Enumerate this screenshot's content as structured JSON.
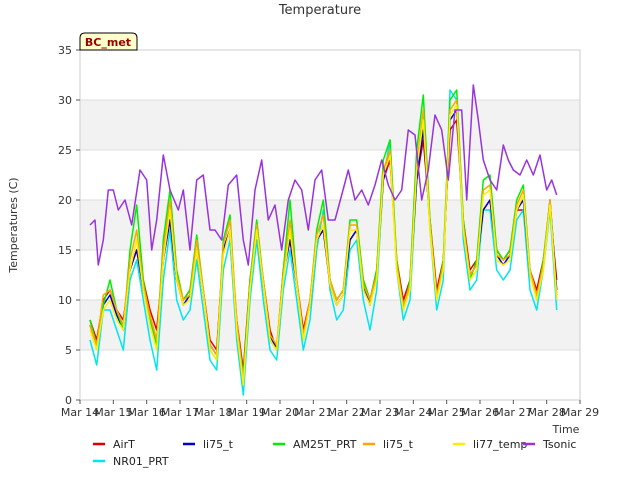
{
  "chart_data": {
    "type": "line",
    "title": "Temperature",
    "badge": "BC_met",
    "xlabel": "Time",
    "ylabel": "Temperatures (C)",
    "ylim": [
      0,
      35
    ],
    "xlim": [
      14,
      29
    ],
    "yticks": [
      0,
      5,
      10,
      15,
      20,
      25,
      30,
      35
    ],
    "xticks": [
      {
        "v": 14,
        "label": "Mar 14"
      },
      {
        "v": 15,
        "label": "Mar 15"
      },
      {
        "v": 16,
        "label": "Mar 16"
      },
      {
        "v": 17,
        "label": "Mar 17"
      },
      {
        "v": 18,
        "label": "Mar 18"
      },
      {
        "v": 19,
        "label": "Mar 19"
      },
      {
        "v": 20,
        "label": "Mar 20"
      },
      {
        "v": 21,
        "label": "Mar 21"
      },
      {
        "v": 22,
        "label": "Mar 22"
      },
      {
        "v": 23,
        "label": "Mar 23"
      },
      {
        "v": 24,
        "label": "Mar 24"
      },
      {
        "v": 25,
        "label": "Mar 25"
      },
      {
        "v": 26,
        "label": "Mar 26"
      },
      {
        "v": 27,
        "label": "Mar 27"
      },
      {
        "v": 28,
        "label": "Mar 28"
      },
      {
        "v": 29,
        "label": "Mar 29"
      }
    ],
    "grid": "horizontal bands",
    "legend_position": "bottom",
    "series": [
      {
        "name": "AirT",
        "color": "#dd0000",
        "x": [
          14.3,
          14.5,
          14.7,
          14.9,
          15.1,
          15.3,
          15.5,
          15.7,
          15.9,
          16.1,
          16.3,
          16.5,
          16.7,
          16.9,
          17.1,
          17.3,
          17.5,
          17.7,
          17.9,
          18.1,
          18.3,
          18.5,
          18.7,
          18.9,
          19.1,
          19.3,
          19.5,
          19.7,
          19.9,
          20.1,
          20.3,
          20.5,
          20.7,
          20.9,
          21.1,
          21.3,
          21.5,
          21.7,
          21.9,
          22.1,
          22.3,
          22.5,
          22.7,
          22.9,
          23.1,
          23.3,
          23.5,
          23.7,
          23.9,
          24.1,
          24.3,
          24.5,
          24.7,
          24.9,
          25.1,
          25.3,
          25.5,
          25.7,
          25.9,
          26.1,
          26.3,
          26.5,
          26.7,
          26.9,
          27.1,
          27.3,
          27.5,
          27.7,
          27.9,
          28.1,
          28.3
        ],
        "y": [
          8,
          6,
          10,
          11,
          9,
          8,
          13,
          15,
          12,
          9,
          7,
          14,
          18,
          12,
          10,
          11,
          15,
          11,
          6,
          5,
          15,
          17,
          8,
          3,
          12,
          17,
          12,
          7,
          5,
          13,
          16,
          12,
          7,
          10,
          16,
          17,
          12,
          10,
          11,
          16,
          17,
          12,
          10,
          13,
          22,
          24,
          14,
          10,
          12,
          22,
          26,
          18,
          11,
          14,
          27,
          28,
          18,
          13,
          14,
          19,
          20,
          15,
          14,
          15,
          19,
          19,
          13,
          11,
          14,
          19,
          12
        ]
      },
      {
        "name": "NR01_PRT",
        "color": "#00e5ee",
        "x": [
          14.3,
          14.5,
          14.7,
          14.9,
          15.1,
          15.3,
          15.5,
          15.7,
          15.9,
          16.1,
          16.3,
          16.5,
          16.7,
          16.9,
          17.1,
          17.3,
          17.5,
          17.7,
          17.9,
          18.1,
          18.3,
          18.5,
          18.7,
          18.9,
          19.1,
          19.3,
          19.5,
          19.7,
          19.9,
          20.1,
          20.3,
          20.5,
          20.7,
          20.9,
          21.1,
          21.3,
          21.5,
          21.7,
          21.9,
          22.1,
          22.3,
          22.5,
          22.7,
          22.9,
          23.1,
          23.3,
          23.5,
          23.7,
          23.9,
          24.1,
          24.3,
          24.5,
          24.7,
          24.9,
          25.1,
          25.3,
          25.5,
          25.7,
          25.9,
          26.1,
          26.3,
          26.5,
          26.7,
          26.9,
          27.1,
          27.3,
          27.5,
          27.7,
          27.9,
          28.1,
          28.3
        ],
        "y": [
          6,
          3.5,
          9,
          9,
          7,
          5,
          12,
          14,
          10,
          6,
          3,
          12,
          17,
          10,
          8,
          9,
          14,
          9,
          4,
          3,
          13,
          16,
          6,
          0.5,
          10,
          16,
          10,
          5,
          4,
          11,
          15,
          10,
          5,
          8,
          15,
          19,
          11,
          8,
          9,
          15,
          16,
          10,
          7,
          11,
          22,
          26,
          13,
          8,
          10,
          22,
          28,
          17,
          9,
          12,
          31,
          30,
          16,
          11,
          12,
          19,
          19,
          13,
          12,
          13,
          18,
          19,
          11,
          9,
          13,
          19,
          9
        ]
      },
      {
        "name": "li75_t",
        "color": "#0000cc",
        "x": [
          14.3,
          14.5,
          14.7,
          14.9,
          15.1,
          15.3,
          15.5,
          15.7,
          15.9,
          16.1,
          16.3,
          16.5,
          16.7,
          16.9,
          17.1,
          17.3,
          17.5,
          17.7,
          17.9,
          18.1,
          18.3,
          18.5,
          18.7,
          18.9,
          19.1,
          19.3,
          19.5,
          19.7,
          19.9,
          20.1,
          20.3,
          20.5,
          20.7,
          20.9,
          21.1,
          21.3,
          21.5,
          21.7,
          21.9,
          22.1,
          22.3,
          22.5,
          22.7,
          22.9,
          23.1,
          23.3,
          23.5,
          23.7,
          23.9,
          24.1,
          24.3,
          24.5,
          24.7,
          24.9,
          25.1,
          25.3,
          25.5,
          25.7,
          25.9,
          26.1,
          26.3,
          26.5,
          26.7,
          26.9,
          27.1,
          27.3,
          27.5,
          27.7,
          27.9,
          28.1,
          28.3
        ],
        "y": [
          7.5,
          5.5,
          9.5,
          10.5,
          8.5,
          7,
          13,
          15,
          11,
          8,
          6,
          14,
          18,
          12,
          9.5,
          10.5,
          15,
          10.5,
          5.5,
          4.5,
          15,
          17,
          7.5,
          2.5,
          11.5,
          17,
          11.5,
          6.5,
          5,
          12.5,
          16,
          11.5,
          6.5,
          9.5,
          16,
          17,
          11.5,
          9.5,
          10.5,
          16,
          17,
          11.5,
          9.5,
          12.5,
          22,
          25,
          13.5,
          9.5,
          11.5,
          22,
          27,
          17.5,
          10.5,
          13.5,
          28,
          29,
          17.5,
          12.5,
          13.5,
          19,
          20,
          14.5,
          13.5,
          14.5,
          19,
          20,
          12.5,
          10.5,
          13.5,
          20,
          11
        ]
      },
      {
        "name": "AM25T_PRT",
        "color": "#00ee00",
        "x": [
          14.3,
          14.5,
          14.7,
          14.9,
          15.1,
          15.3,
          15.5,
          15.7,
          15.9,
          16.1,
          16.3,
          16.5,
          16.7,
          16.9,
          17.1,
          17.3,
          17.5,
          17.7,
          17.9,
          18.1,
          18.3,
          18.5,
          18.7,
          18.9,
          19.1,
          19.3,
          19.5,
          19.7,
          19.9,
          20.1,
          20.3,
          20.5,
          20.7,
          20.9,
          21.1,
          21.3,
          21.5,
          21.7,
          21.9,
          22.1,
          22.3,
          22.5,
          22.7,
          22.9,
          23.1,
          23.3,
          23.5,
          23.7,
          23.9,
          24.1,
          24.3,
          24.5,
          24.7,
          24.9,
          25.1,
          25.3,
          25.5,
          25.7,
          25.9,
          26.1,
          26.3,
          26.5,
          26.7,
          26.9,
          27.1,
          27.3,
          27.5,
          27.7,
          27.9,
          28.1,
          28.3
        ],
        "y": [
          8,
          5.5,
          9.5,
          12,
          9,
          7,
          15,
          19.5,
          12,
          8,
          5.5,
          16,
          21,
          13,
          10,
          11,
          16.5,
          11,
          5,
          4,
          16,
          18.5,
          7.5,
          2.5,
          12,
          18,
          12,
          6,
          5,
          13,
          20,
          12,
          6,
          10,
          17,
          20,
          12,
          10,
          11,
          18,
          18,
          12,
          10,
          13,
          24,
          26,
          14,
          9,
          12,
          25,
          30.5,
          18,
          10,
          14,
          30,
          31,
          18,
          12,
          14,
          22,
          22.5,
          15,
          14,
          15,
          20,
          21.5,
          13,
          10,
          14,
          20,
          10
        ]
      },
      {
        "name": "li75_t",
        "color": "#ffa500",
        "x": [
          14.3,
          14.5,
          14.7,
          14.9,
          15.1,
          15.3,
          15.5,
          15.7,
          15.9,
          16.1,
          16.3,
          16.5,
          16.7,
          16.9,
          17.1,
          17.3,
          17.5,
          17.7,
          17.9,
          18.1,
          18.3,
          18.5,
          18.7,
          18.9,
          19.1,
          19.3,
          19.5,
          19.7,
          19.9,
          20.1,
          20.3,
          20.5,
          20.7,
          20.9,
          21.1,
          21.3,
          21.5,
          21.7,
          21.9,
          22.1,
          22.3,
          22.5,
          22.7,
          22.9,
          23.1,
          23.3,
          23.5,
          23.7,
          23.9,
          24.1,
          24.3,
          24.5,
          24.7,
          24.9,
          25.1,
          25.3,
          25.5,
          25.7,
          25.9,
          26.1,
          26.3,
          26.5,
          26.7,
          26.9,
          27.1,
          27.3,
          27.5,
          27.7,
          27.9,
          28.1,
          28.3
        ],
        "y": [
          7.5,
          5.5,
          10.5,
          11,
          9,
          7.5,
          14,
          17,
          11.5,
          8.5,
          6,
          15,
          20,
          12.5,
          10,
          10.5,
          16,
          11,
          5.5,
          4.5,
          15.5,
          18,
          8,
          2,
          11.5,
          17.5,
          12,
          6.5,
          5.5,
          12.5,
          18,
          12,
          6.5,
          10,
          16.5,
          18.5,
          12,
          10,
          11,
          17.5,
          17.5,
          11.5,
          10,
          12.5,
          23,
          25,
          13.5,
          9.5,
          11.5,
          23.5,
          29,
          17.5,
          10.5,
          13.5,
          29,
          30,
          17.5,
          12.5,
          13.5,
          21,
          21.5,
          14.5,
          14,
          14.5,
          19.5,
          21,
          13,
          10.5,
          13.5,
          20,
          10.5
        ]
      },
      {
        "name": "li77_temp",
        "color": "#ffee00",
        "x": [
          14.3,
          14.5,
          14.7,
          14.9,
          15.1,
          15.3,
          15.5,
          15.7,
          15.9,
          16.1,
          16.3,
          16.5,
          16.7,
          16.9,
          17.1,
          17.3,
          17.5,
          17.7,
          17.9,
          18.1,
          18.3,
          18.5,
          18.7,
          18.9,
          19.1,
          19.3,
          19.5,
          19.7,
          19.9,
          20.1,
          20.3,
          20.5,
          20.7,
          20.9,
          21.1,
          21.3,
          21.5,
          21.7,
          21.9,
          22.1,
          22.3,
          22.5,
          22.7,
          22.9,
          23.1,
          23.3,
          23.5,
          23.7,
          23.9,
          24.1,
          24.3,
          24.5,
          24.7,
          24.9,
          25.1,
          25.3,
          25.5,
          25.7,
          25.9,
          26.1,
          26.3,
          26.5,
          26.7,
          26.9,
          27.1,
          27.3,
          27.5,
          27.7,
          27.9,
          28.1,
          28.3
        ],
        "y": [
          7,
          5,
          9,
          10,
          8,
          7,
          13,
          16,
          11,
          7.5,
          5,
          14,
          19,
          12,
          9.5,
          10,
          15,
          10.5,
          5,
          4,
          14.5,
          17,
          7,
          1.5,
          11,
          17,
          11.5,
          6,
          5,
          12,
          17,
          11.5,
          6,
          9.5,
          16,
          17.5,
          11.5,
          9.5,
          10.5,
          17,
          17,
          11,
          9.5,
          12,
          22.5,
          24.5,
          13,
          9,
          11,
          23,
          28,
          17,
          10,
          13,
          28.5,
          29.5,
          17,
          12,
          13,
          20.5,
          21,
          14,
          13.5,
          14,
          19,
          20.5,
          12.5,
          10,
          13,
          19.5,
          10
        ]
      },
      {
        "name": "Tsonic",
        "color": "#9933dd",
        "x": [
          14.3,
          14.45,
          14.55,
          14.7,
          14.85,
          15.0,
          15.15,
          15.35,
          15.55,
          15.8,
          16.0,
          16.15,
          16.3,
          16.5,
          16.7,
          16.95,
          17.1,
          17.3,
          17.5,
          17.7,
          17.9,
          18.05,
          18.25,
          18.45,
          18.7,
          18.9,
          19.05,
          19.25,
          19.45,
          19.65,
          19.85,
          20.05,
          20.25,
          20.45,
          20.65,
          20.85,
          21.05,
          21.25,
          21.45,
          21.65,
          21.85,
          22.05,
          22.25,
          22.45,
          22.65,
          22.85,
          23.05,
          23.25,
          23.45,
          23.65,
          23.85,
          24.05,
          24.25,
          24.45,
          24.65,
          24.85,
          25.05,
          25.25,
          25.45,
          25.6,
          25.8,
          25.95,
          26.1,
          26.3,
          26.5,
          26.7,
          26.85,
          27.0,
          27.2,
          27.4,
          27.6,
          27.8,
          28.0,
          28.15,
          28.3
        ],
        "y": [
          17.5,
          18,
          13.5,
          16,
          21,
          21,
          19,
          20,
          17.5,
          23,
          22,
          15,
          18,
          24.5,
          21,
          19,
          21,
          15,
          22,
          22.5,
          17,
          17,
          16,
          21.5,
          22.5,
          16,
          13.5,
          21,
          24,
          18,
          19.5,
          15,
          20,
          22,
          21,
          17,
          22,
          23,
          18,
          18,
          20.5,
          23,
          20,
          21,
          19.5,
          21.5,
          24,
          21.5,
          20,
          21,
          27,
          26.5,
          20,
          23,
          28.5,
          27,
          22,
          29,
          29,
          20,
          31.5,
          28,
          24,
          22,
          21,
          25.5,
          24,
          23,
          22.5,
          24,
          22.5,
          24.5,
          21,
          22,
          20.5
        ]
      }
    ]
  }
}
